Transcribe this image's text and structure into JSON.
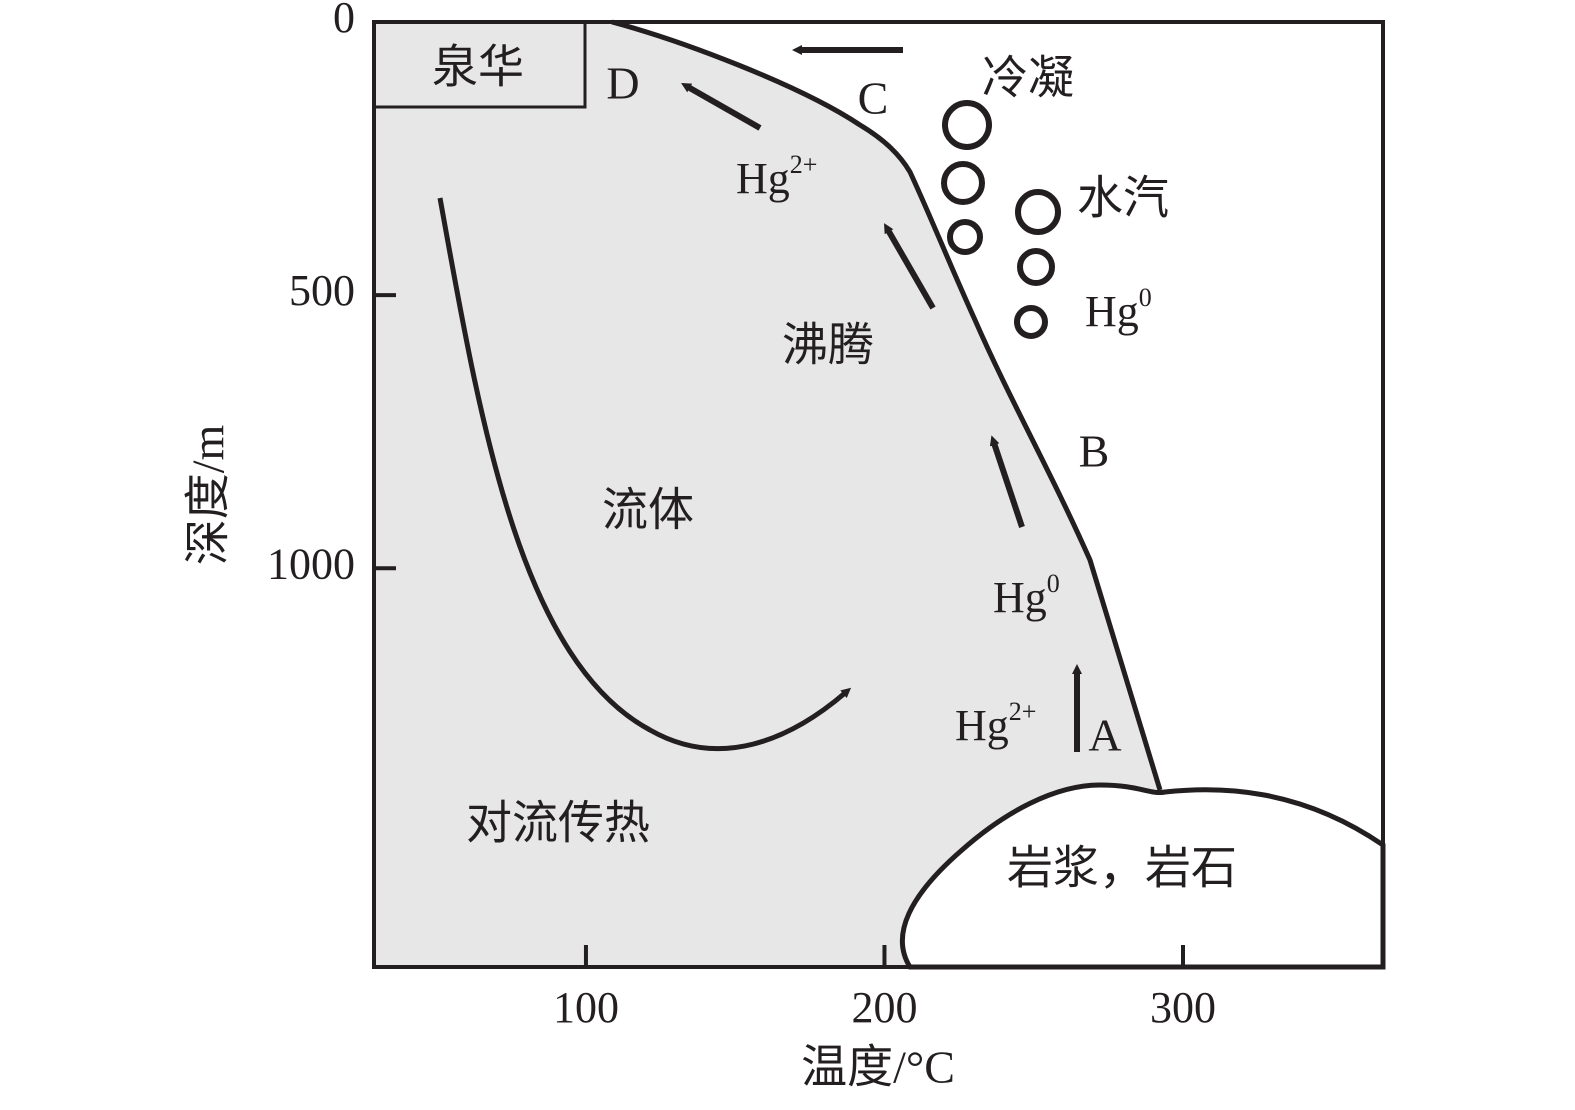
{
  "axes": {
    "x_label": "温度/°C",
    "y_label": "深度/m",
    "xlim": [
      29,
      367
    ],
    "ylim": [
      0,
      1730
    ],
    "xticks": [
      100,
      200,
      300
    ],
    "yticks": [
      0,
      500,
      1000
    ]
  },
  "labels": {
    "sinter": "泉华",
    "D": "D",
    "C": "C",
    "B": "B",
    "A": "A",
    "condense": "冷凝",
    "vapor": "水汽",
    "boiling": "沸腾",
    "fluid": "流体",
    "convection": "对流传热",
    "magma": "岩浆，岩石"
  },
  "hg": [
    {
      "base": "Hg",
      "sup": "2+"
    },
    {
      "base": "Hg",
      "sup": "0"
    },
    {
      "base": "Hg",
      "sup": "0"
    },
    {
      "base": "Hg",
      "sup": "2+"
    }
  ]
}
